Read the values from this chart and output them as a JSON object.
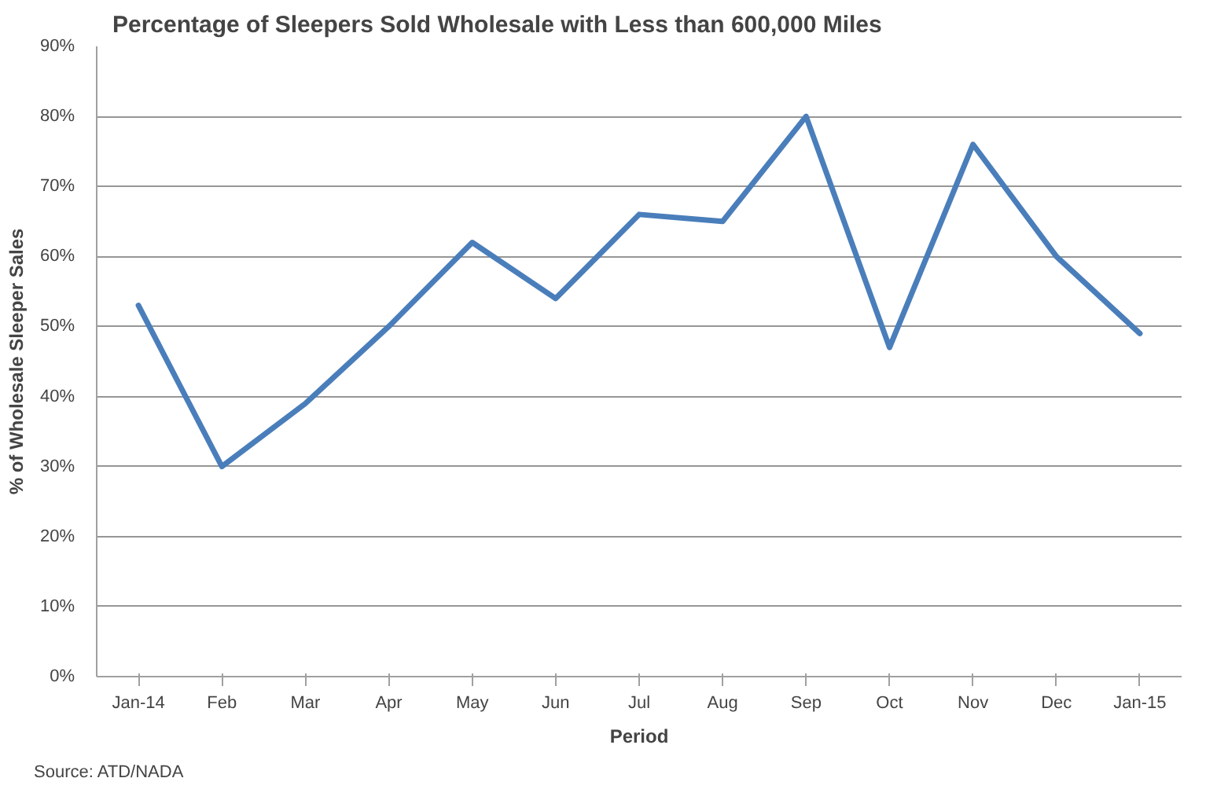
{
  "chart_data": {
    "type": "line",
    "title": "Percentage of Sleepers Sold Wholesale with Less than 600,000 Miles",
    "xlabel": "Period",
    "ylabel": "% of Wholesale Sleeper Sales",
    "categories": [
      "Jan-14",
      "Feb",
      "Mar",
      "Apr",
      "May",
      "Jun",
      "Jul",
      "Aug",
      "Sep",
      "Oct",
      "Nov",
      "Dec",
      "Jan-15"
    ],
    "series": [
      {
        "color": "#4a7ebb",
        "values": [
          53,
          30,
          39,
          50,
          62,
          54,
          66,
          65,
          80,
          47,
          76,
          60,
          49
        ]
      }
    ],
    "ylim": [
      0,
      90
    ],
    "yticks": [
      {
        "value": 0,
        "label": "0%"
      },
      {
        "value": 10,
        "label": "10%"
      },
      {
        "value": 20,
        "label": "20%"
      },
      {
        "value": 30,
        "label": "30%"
      },
      {
        "value": 40,
        "label": "40%"
      },
      {
        "value": 50,
        "label": "50%"
      },
      {
        "value": 60,
        "label": "60%"
      },
      {
        "value": 70,
        "label": "70%"
      },
      {
        "value": 80,
        "label": "80%"
      },
      {
        "value": 90,
        "label": "90%"
      }
    ],
    "grid": "y",
    "marker": "none",
    "line_style": "solid",
    "annotations": [
      "Source: ATD/NADA"
    ]
  }
}
